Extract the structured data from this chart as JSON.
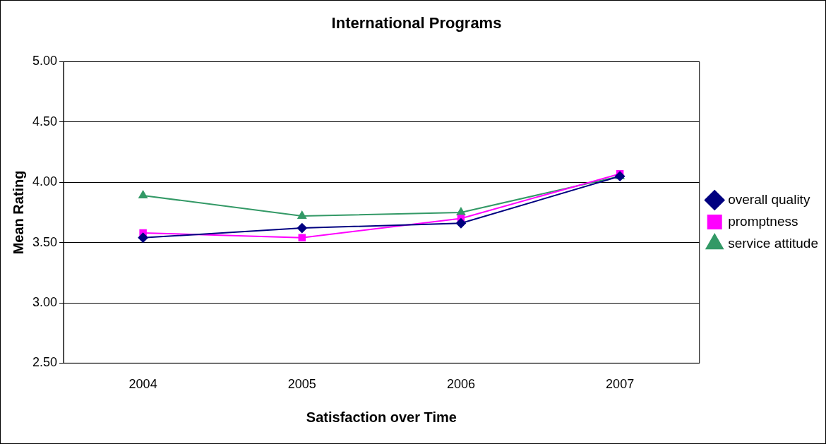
{
  "chart_data": {
    "type": "line",
    "title": "International Programs",
    "xlabel": "Satisfaction over Time",
    "ylabel": "Mean Rating",
    "categories": [
      "2004",
      "2005",
      "2006",
      "2007"
    ],
    "series": [
      {
        "name": "overall quality",
        "color": "#000080",
        "marker": "diamond",
        "values": [
          3.54,
          3.62,
          3.66,
          4.05
        ]
      },
      {
        "name": "promptness",
        "color": "#ff00ff",
        "marker": "square",
        "values": [
          3.58,
          3.54,
          3.7,
          4.07
        ]
      },
      {
        "name": "service attitude",
        "color": "#339966",
        "marker": "triangle",
        "values": [
          3.89,
          3.72,
          3.75,
          4.05
        ]
      }
    ],
    "ylim": [
      2.5,
      5
    ],
    "yticks": [
      {
        "value": 2.5,
        "label": "2.50"
      },
      {
        "value": 3,
        "label": "3.00"
      },
      {
        "value": 3.5,
        "label": "3.50"
      },
      {
        "value": 4,
        "label": "4.00"
      },
      {
        "value": 4.5,
        "label": "4.50"
      },
      {
        "value": 5,
        "label": "5.00"
      }
    ],
    "grid": "y",
    "legend": "right",
    "line_style": "solid"
  }
}
